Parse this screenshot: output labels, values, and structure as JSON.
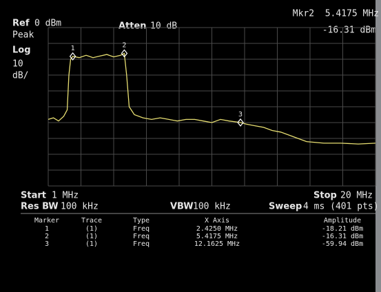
{
  "header": {
    "ref_label": "Ref",
    "ref_value": "0 dBm",
    "detector": "Peak",
    "scale_type": "Log",
    "scale_per_div": "10",
    "scale_unit": "dB/",
    "atten_label": "Atten",
    "atten_value": "10 dB",
    "marker_readout": "Mkr2  5.4175 MHz",
    "marker_amplitude": "-16.31 dBm"
  },
  "footer": {
    "start_label": "Start",
    "start_value": "1 MHz",
    "stop_label": "Stop",
    "stop_value": "20 MHz",
    "rbw_label": "Res BW",
    "rbw_value": "100 kHz",
    "vbw_label": "VBW",
    "vbw_value": "100 kHz",
    "sweep_label": "Sweep",
    "sweep_value": "4 ms (401 pts)"
  },
  "table": {
    "columns": [
      "Marker",
      "Trace",
      "Type",
      "X Axis",
      "Amplitude"
    ],
    "rows": [
      [
        "1",
        "(1)",
        "Freq",
        "2.4250 MHz",
        "-18.21 dBm"
      ],
      [
        "2",
        "(1)",
        "Freq",
        "5.4175 MHz",
        "-16.31 dBm"
      ],
      [
        "3",
        "(1)",
        "Freq",
        "12.1625 MHz",
        "-59.94 dBm"
      ]
    ]
  },
  "chart_data": {
    "type": "line",
    "color": "#e8df72",
    "xlim": [
      1,
      20
    ],
    "ylim": [
      -100,
      0
    ],
    "xticks": [
      1,
      2.9,
      4.8,
      6.7,
      8.6,
      10.5,
      12.4,
      14.3,
      16.2,
      18.1,
      20
    ],
    "yticks": [
      -100,
      -90,
      -80,
      -70,
      -60,
      -50,
      -40,
      -30,
      -20,
      -10,
      0
    ],
    "grid": true,
    "x": [
      1.0,
      1.3,
      1.6,
      1.9,
      2.1,
      2.2,
      2.3,
      2.425,
      2.8,
      3.2,
      3.6,
      4.0,
      4.4,
      4.8,
      5.2,
      5.4175,
      5.55,
      5.7,
      6.0,
      6.5,
      7,
      7.5,
      8,
      8.5,
      9,
      9.5,
      10,
      10.5,
      11,
      11.5,
      12.1625,
      12.5,
      13,
      13.5,
      14,
      14.5,
      15,
      15.5,
      16,
      17,
      18,
      19,
      20
    ],
    "values": [
      -58,
      -57,
      -59,
      -56,
      -52,
      -30,
      -20,
      -18.21,
      -19,
      -17.5,
      -19,
      -18,
      -17,
      -18.5,
      -17.5,
      -16.31,
      -30,
      -50,
      -55,
      -57,
      -58,
      -57,
      -58,
      -59,
      -58,
      -58,
      -59,
      -60,
      -58,
      -59,
      -59.94,
      -61,
      -62,
      -63,
      -65,
      -66,
      -68,
      -70,
      -72,
      -73,
      -73,
      -73.5,
      -73
    ],
    "markers": [
      {
        "label": "1",
        "x": 2.425,
        "y": -18.21
      },
      {
        "label": "2",
        "x": 5.4175,
        "y": -16.31
      },
      {
        "label": "3",
        "x": 12.1625,
        "y": -59.94
      }
    ]
  }
}
